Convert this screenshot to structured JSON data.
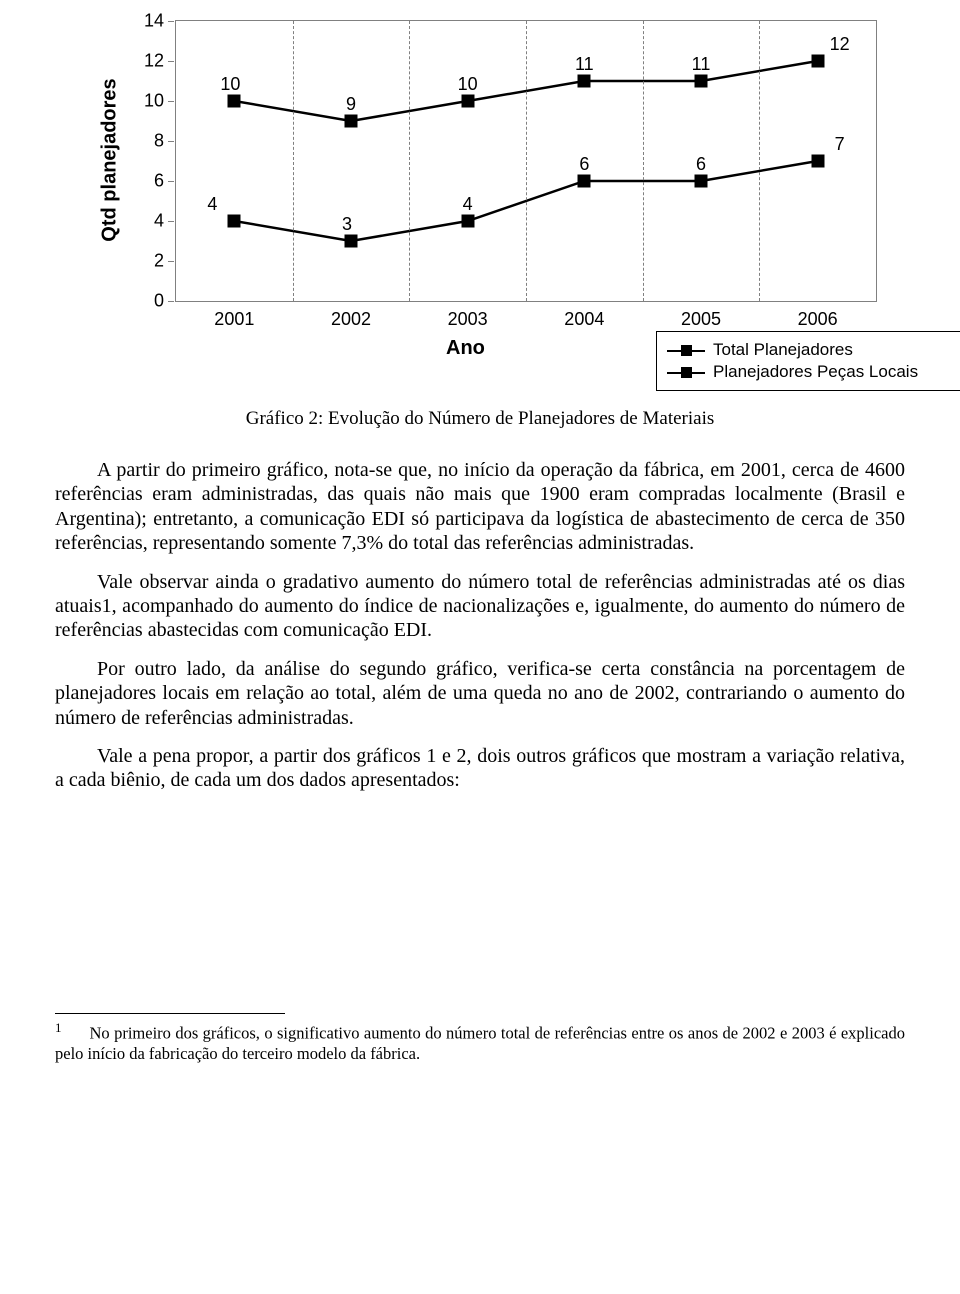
{
  "chart": {
    "type": "line",
    "y_axis_label": "Qtd planejadores",
    "x_axis_title": "Ano",
    "ylim": [
      0,
      14
    ],
    "ytick_step": 2,
    "yticks": [
      0,
      2,
      4,
      6,
      8,
      10,
      12,
      14
    ],
    "categories": [
      "2001",
      "2002",
      "2003",
      "2004",
      "2005",
      "2006"
    ],
    "series": [
      {
        "name": "Total Planejadores",
        "values": [
          10,
          9,
          10,
          11,
          11,
          12
        ]
      },
      {
        "name": "Planejadores Peças Locais",
        "values": [
          4,
          3,
          4,
          6,
          6,
          7
        ]
      }
    ],
    "line_color": "#000000",
    "marker_color": "#000000",
    "marker_shape": "square",
    "line_width": 2.5,
    "background_color": "#ffffff",
    "grid_color": "#808080",
    "label_font": "Arial",
    "label_fontsize": 18,
    "axis_title_fontsize": 20,
    "axis_title_fontweight": "bold"
  },
  "caption": "Gráfico 2: Evolução do Número de Planejadores de Materiais",
  "paragraphs": {
    "p1": "A partir do primeiro gráfico, nota-se que, no início da operação da fábrica, em 2001, cerca de 4600 referências eram administradas, das quais não mais que 1900 eram compradas localmente (Brasil e Argentina); entretanto, a comunicação EDI só participava da logística de abastecimento de cerca de 350 referências, representando somente 7,3% do total das referências administradas.",
    "p2": "Vale observar ainda o gradativo aumento do número total de referências administradas até os dias atuais1, acompanhado do aumento do índice de nacionalizações e, igualmente, do aumento do número de referências abastecidas com comunicação EDI.",
    "p3": "Por outro lado, da análise do segundo gráfico, verifica-se certa constância na porcentagem de planejadores locais em relação ao total, além de uma queda no ano de 2002, contrariando o aumento do número de referências administradas.",
    "p4": "Vale a pena propor, a partir dos gráficos 1 e 2, dois outros gráficos que mostram a variação relativa, a cada biênio, de cada um dos dados apresentados:"
  },
  "footnote": {
    "num": "1",
    "text": "No primeiro dos gráficos, o significativo aumento do número total de referências entre os anos de 2002 e 2003 é explicado pelo início da fabricação do terceiro modelo da fábrica."
  }
}
